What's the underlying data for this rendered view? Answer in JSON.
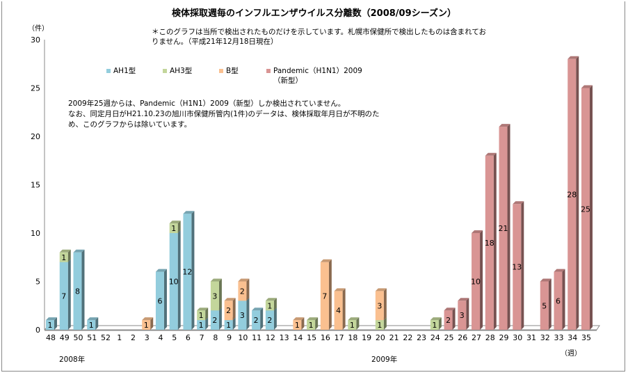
{
  "chart_data": {
    "type": "bar",
    "stacked": true,
    "style": "3d-column",
    "title": "検体採取週毎のインフルエンザウイルス分離数（2008/09シーズン）",
    "ylabel": "（件）",
    "xlabel": "（週）",
    "ylim": [
      0,
      30
    ],
    "yticks": [
      0,
      5,
      10,
      15,
      20,
      25,
      30
    ],
    "grid": false,
    "legend_position": "top-center",
    "categories": [
      "48",
      "49",
      "50",
      "51",
      "52",
      "1",
      "2",
      "3",
      "4",
      "5",
      "6",
      "7",
      "8",
      "9",
      "10",
      "11",
      "12",
      "13",
      "14",
      "15",
      "16",
      "17",
      "18",
      "19",
      "20",
      "21",
      "22",
      "23",
      "24",
      "25",
      "26",
      "27",
      "28",
      "29",
      "30",
      "31",
      "32",
      "33",
      "34",
      "35"
    ],
    "year_labels": [
      {
        "text": "2008年",
        "under": "49"
      },
      {
        "text": "2009年",
        "under": "20"
      }
    ],
    "series": [
      {
        "name": "AH1型",
        "color": "#93cddd",
        "values": [
          1,
          7,
          8,
          1,
          0,
          0,
          0,
          0,
          6,
          10,
          12,
          1,
          2,
          1,
          3,
          2,
          2,
          0,
          0,
          0,
          0,
          0,
          0,
          0,
          0,
          0,
          0,
          0,
          0,
          0,
          0,
          0,
          0,
          0,
          0,
          0,
          0,
          0,
          0,
          0
        ]
      },
      {
        "name": "AH3型",
        "color": "#c3d69b",
        "values": [
          0,
          1,
          0,
          0,
          0,
          0,
          0,
          0,
          0,
          1,
          0,
          1,
          3,
          0,
          0,
          0,
          1,
          0,
          0,
          1,
          0,
          0,
          1,
          0,
          1,
          0,
          0,
          0,
          1,
          0,
          0,
          0,
          0,
          0,
          0,
          0,
          0,
          0,
          0,
          0
        ]
      },
      {
        "name": "B型",
        "color": "#fac090",
        "values": [
          0,
          0,
          0,
          0,
          0,
          0,
          0,
          1,
          0,
          0,
          0,
          0,
          0,
          2,
          2,
          0,
          0,
          0,
          1,
          0,
          7,
          4,
          0,
          0,
          3,
          0,
          0,
          0,
          0,
          0,
          0,
          0,
          0,
          0,
          0,
          0,
          0,
          0,
          0,
          0
        ]
      },
      {
        "name": "Pandemic（H1N1）2009（新型）",
        "color": "#d99594",
        "values": [
          0,
          0,
          0,
          0,
          0,
          0,
          0,
          0,
          0,
          0,
          0,
          0,
          0,
          0,
          0,
          0,
          0,
          0,
          0,
          0,
          0,
          0,
          0,
          0,
          0,
          0,
          0,
          0,
          0,
          2,
          3,
          10,
          18,
          21,
          13,
          0,
          5,
          6,
          28,
          25
        ]
      }
    ],
    "annotations": [
      "＊このグラフは当所で検出されたものだけを示しています。札幌市保健所で検出したものは含まれておりません。（平成21年12月18日現在）",
      "2009年25週からは、Pandemic（H1N1）2009（新型）しか検出されていません。なお、同定月日がH21.10.23の旭川市保健所管内(1件)のデータは、検体採取年月日が不明のため、このグラフからは除いています。"
    ]
  },
  "header": {
    "title": "検体採取週毎のインフルエンザウイルス分離数（2008/09シーズン）",
    "note": "＊このグラフは当所で検出されたものだけを示しています。札幌市保健所で検出したものは含まれておりません。（平成21年12月18日現在）"
  },
  "legend": [
    {
      "label": "AH1型",
      "color": "#93cddd"
    },
    {
      "label": "AH3型",
      "color": "#c3d69b"
    },
    {
      "label": "B型",
      "color": "#fac090"
    },
    {
      "label": "Pandemic（H1N1）2009",
      "label2": "（新型）",
      "color": "#d99594"
    }
  ],
  "annotation": {
    "line1": "2009年25週からは、Pandemic（H1N1）2009（新型）しか検出されていません。",
    "line2": "なお、同定月日がH21.10.23の旭川市保健所管内(1件)のデータは、検体採取年月日が不明のた",
    "line3": "め、このグラフからは除いています。"
  },
  "axis": {
    "y_unit": "（件）",
    "x_unit": "（週）",
    "year_2008": "2008年",
    "year_2009": "2009年"
  }
}
